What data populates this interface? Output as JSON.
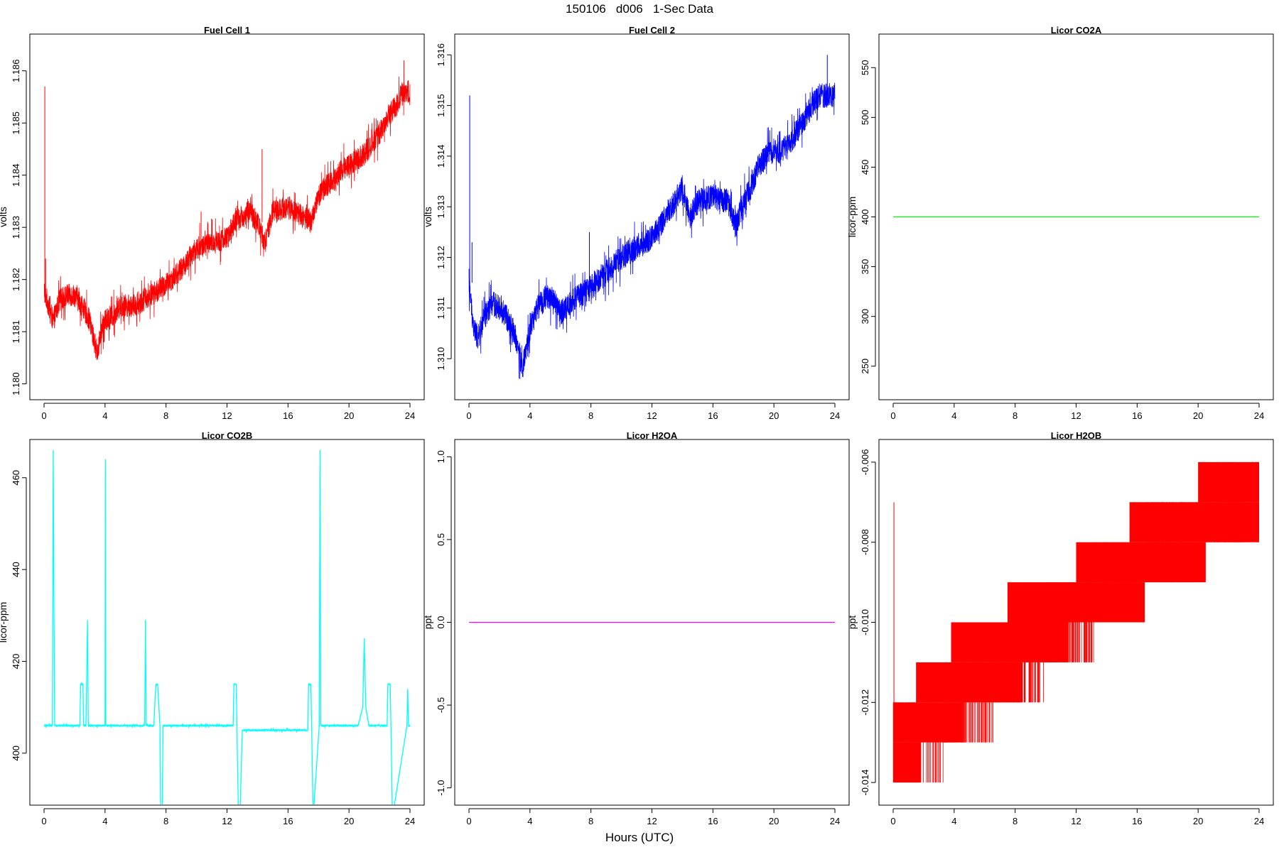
{
  "page": {
    "title": "150106   d006   1-Sec Data",
    "x_label": "Hours (UTC)"
  },
  "chart_data": [
    {
      "type": "line",
      "title": "Fuel Cell 1",
      "xlabel": "",
      "ylabel": "volts",
      "xlim": [
        0,
        24
      ],
      "ylim": [
        1.1799,
        1.1865
      ],
      "xticks": [
        0,
        4,
        8,
        12,
        16,
        20,
        24
      ],
      "yticks": [
        1.18,
        1.181,
        1.182,
        1.183,
        1.184,
        1.185,
        1.186
      ],
      "ytick_labels": [
        "1.180",
        "1.181",
        "1.182",
        "1.183",
        "1.184",
        "1.185",
        "1.186"
      ],
      "color": "#ff0000",
      "noise": 0.00022,
      "spikes": [
        [
          0.05,
          1.1857
        ],
        [
          0.1,
          1.1824
        ],
        [
          10.3,
          1.1833
        ],
        [
          14.3,
          1.1845
        ],
        [
          23.6,
          1.1862
        ]
      ],
      "x": [
        0,
        0.3,
        0.6,
        1,
        1.5,
        2,
        2.5,
        3,
        3.3,
        3.5,
        3.8,
        4,
        4.5,
        5,
        5.5,
        6,
        7,
        8,
        9,
        10,
        11,
        12,
        12.5,
        13,
        13.5,
        14,
        14.5,
        15,
        16,
        17,
        17.5,
        18,
        18.5,
        19,
        19.5,
        20,
        20.5,
        21,
        21.5,
        22,
        22.5,
        23,
        23.5,
        24
      ],
      "values": [
        1.1818,
        1.1815,
        1.1812,
        1.1816,
        1.1817,
        1.1817,
        1.1815,
        1.1812,
        1.1808,
        1.1806,
        1.1811,
        1.1812,
        1.1813,
        1.1815,
        1.1815,
        1.1815,
        1.1817,
        1.1819,
        1.1822,
        1.1826,
        1.1827,
        1.1828,
        1.1831,
        1.1832,
        1.1833,
        1.1831,
        1.1827,
        1.1833,
        1.1834,
        1.1832,
        1.1831,
        1.1836,
        1.1838,
        1.1839,
        1.1841,
        1.1842,
        1.1843,
        1.1844,
        1.1846,
        1.1848,
        1.1851,
        1.1853,
        1.1856,
        1.1856
      ]
    },
    {
      "type": "line",
      "title": "Fuel Cell 2",
      "xlabel": "",
      "ylabel": "volts",
      "xlim": [
        0,
        24
      ],
      "ylim": [
        1.3094,
        1.3162
      ],
      "xticks": [
        0,
        4,
        8,
        12,
        16,
        20,
        24
      ],
      "yticks": [
        1.31,
        1.311,
        1.312,
        1.313,
        1.314,
        1.315,
        1.316
      ],
      "ytick_labels": [
        "1.310",
        "1.311",
        "1.312",
        "1.313",
        "1.314",
        "1.315",
        "1.316"
      ],
      "color": "#0000ff",
      "noise": 0.00025,
      "spikes": [
        [
          0.05,
          1.3152
        ],
        [
          0.2,
          1.3123
        ],
        [
          7.9,
          1.3125
        ],
        [
          23.5,
          1.316
        ]
      ],
      "x": [
        0,
        0.3,
        0.6,
        1,
        1.5,
        2,
        2.5,
        3,
        3.3,
        3.5,
        3.8,
        4,
        4.5,
        5,
        5.5,
        6,
        7,
        8,
        9,
        10,
        11,
        12,
        12.5,
        13,
        13.5,
        14,
        14.5,
        15,
        16,
        17,
        17.5,
        18,
        18.5,
        19,
        19.5,
        20,
        20.5,
        21,
        21.5,
        22,
        22.5,
        23,
        23.5,
        24
      ],
      "values": [
        1.3115,
        1.3106,
        1.3104,
        1.3108,
        1.3111,
        1.311,
        1.3108,
        1.3105,
        1.3101,
        1.3098,
        1.3102,
        1.3106,
        1.311,
        1.3112,
        1.3112,
        1.3109,
        1.3112,
        1.3114,
        1.3117,
        1.312,
        1.3122,
        1.3124,
        1.3126,
        1.3129,
        1.3131,
        1.3134,
        1.3128,
        1.3131,
        1.3132,
        1.3131,
        1.3126,
        1.3131,
        1.3134,
        1.3138,
        1.314,
        1.3141,
        1.3141,
        1.3142,
        1.3145,
        1.3147,
        1.315,
        1.3152,
        1.3152,
        1.3152
      ]
    },
    {
      "type": "line",
      "title": "Licor CO2A",
      "xlabel": "",
      "ylabel": "licor-ppm",
      "xlim": [
        0,
        24
      ],
      "ylim": [
        227,
        573
      ],
      "xticks": [
        0,
        4,
        8,
        12,
        16,
        20,
        24
      ],
      "yticks": [
        250,
        300,
        350,
        400,
        450,
        500,
        550
      ],
      "ytick_labels": [
        "250",
        "300",
        "350",
        "400",
        "450",
        "500",
        "550"
      ],
      "color": "#00ff00",
      "noise": 0,
      "spikes": [],
      "x": [
        0,
        24
      ],
      "values": [
        400,
        400
      ]
    },
    {
      "type": "line",
      "title": "Licor CO2B",
      "xlabel": "",
      "ylabel": "licor-ppm",
      "xlim": [
        0,
        24
      ],
      "ylim": [
        391,
        466
      ],
      "xticks": [
        0,
        4,
        8,
        12,
        16,
        20,
        24
      ],
      "yticks": [
        400,
        420,
        440,
        460
      ],
      "ytick_labels": [
        "400",
        "420",
        "440",
        "460"
      ],
      "color": "#00ffff",
      "noise": 0.25,
      "spikes": [],
      "x": [
        0,
        0.55,
        0.6,
        0.65,
        0.7,
        2.35,
        2.4,
        2.55,
        2.6,
        2.75,
        2.85,
        2.9,
        2.95,
        3.1,
        4.0,
        4.02,
        4.05,
        6.6,
        6.65,
        6.7,
        7.2,
        7.3,
        7.35,
        7.45,
        7.6,
        7.65,
        7.75,
        7.8,
        8.0,
        12.4,
        12.45,
        12.6,
        12.65,
        12.75,
        12.85,
        13.0,
        17.3,
        17.35,
        17.5,
        17.55,
        17.65,
        18.05,
        18.1,
        18.15,
        20.6,
        20.9,
        21.0,
        21.1,
        21.3,
        22.5,
        22.55,
        22.7,
        22.75,
        22.85,
        23.8,
        23.85,
        23.9,
        24
      ],
      "values": [
        406,
        406,
        466,
        432,
        406,
        406,
        415,
        415,
        406,
        406,
        429,
        406,
        406,
        406,
        406,
        464,
        406,
        406,
        429,
        406,
        406,
        413,
        415,
        415,
        406,
        386,
        386,
        406,
        406,
        406,
        415,
        415,
        406,
        386,
        386,
        405,
        405,
        415,
        415,
        406,
        386,
        406,
        466,
        406,
        406,
        410,
        425,
        410,
        406,
        406,
        415,
        415,
        406,
        386,
        406,
        414,
        406,
        406
      ]
    },
    {
      "type": "line",
      "title": "Licor H2OA",
      "xlabel": "",
      "ylabel": "ppt",
      "xlim": [
        0,
        24
      ],
      "ylim": [
        -1.04,
        1.04
      ],
      "xticks": [
        0,
        4,
        8,
        12,
        16,
        20,
        24
      ],
      "yticks": [
        -1.0,
        -0.5,
        0.0,
        0.5,
        1.0
      ],
      "ytick_labels": [
        "-1.0",
        "-0.5",
        "0.0",
        "0.5",
        "1.0"
      ],
      "color": "#ff00ff",
      "noise": 0,
      "spikes": [],
      "x": [
        0,
        24
      ],
      "values": [
        0,
        0
      ]
    },
    {
      "type": "step",
      "title": "Licor H2OB",
      "xlabel": "",
      "ylabel": "ppt",
      "xlim": [
        0,
        24
      ],
      "ylim": [
        -0.0143,
        -0.0057
      ],
      "xticks": [
        0,
        4,
        8,
        12,
        16,
        20,
        24
      ],
      "yticks": [
        -0.014,
        -0.012,
        -0.01,
        -0.008,
        -0.006
      ],
      "ytick_labels": [
        "-0.014",
        "-0.012",
        "-0.010",
        "-0.008",
        "-0.006"
      ],
      "color": "#ff0000",
      "spikes": [
        [
          0.05,
          -0.007
        ]
      ],
      "levels": [
        {
          "value": -0.014,
          "band": -0.013,
          "from": 0,
          "to": 1.8
        },
        {
          "value": -0.013,
          "band": -0.012,
          "from": 0,
          "to": 4.5
        },
        {
          "value": -0.012,
          "band": -0.011,
          "from": 1.5,
          "to": 8.5
        },
        {
          "value": -0.011,
          "band": -0.01,
          "from": 3.8,
          "to": 11.5
        },
        {
          "value": -0.01,
          "band": -0.009,
          "from": 7.5,
          "to": 16.5
        },
        {
          "value": -0.009,
          "band": -0.008,
          "from": 12,
          "to": 20.5
        },
        {
          "value": -0.008,
          "band": -0.007,
          "from": 15.5,
          "to": 24
        },
        {
          "value": -0.007,
          "band": -0.006,
          "from": 20,
          "to": 24
        }
      ]
    }
  ]
}
